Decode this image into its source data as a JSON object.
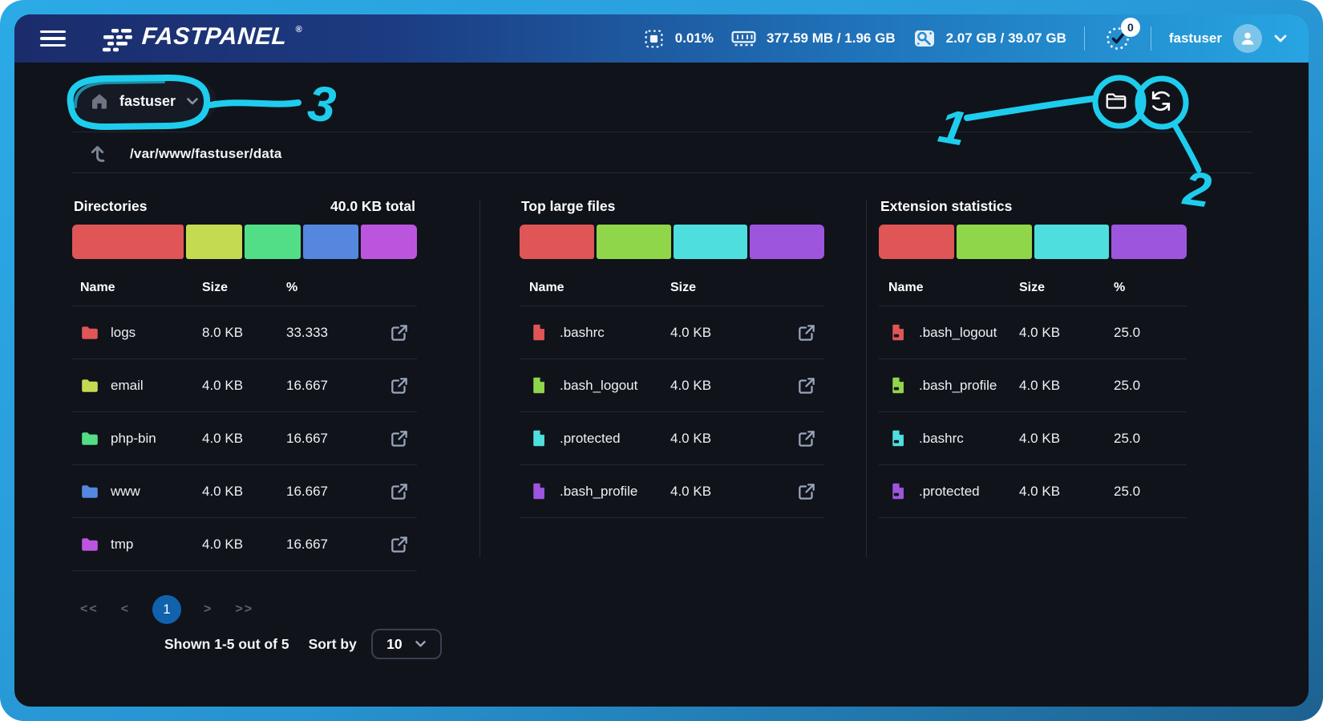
{
  "header": {
    "logo": "FASTPANEL",
    "logo_reg": "®",
    "cpu_usage": "0.01%",
    "memory_usage": "377.59 MB / 1.96 GB",
    "disk_usage": "2.07 GB / 39.07 GB",
    "notification_count": "0",
    "username": "fastuser"
  },
  "toolbar": {
    "user_selector": "fastuser",
    "path": "/var/www/fastuser/data"
  },
  "panels": {
    "directories": {
      "title": "Directories",
      "total": "40.0 KB total",
      "columns": [
        "Name",
        "Size",
        "%"
      ],
      "bar": [
        {
          "color": "#e05555",
          "pct": 33.333
        },
        {
          "color": "#c4da50",
          "pct": 16.667
        },
        {
          "color": "#52dd87",
          "pct": 16.667
        },
        {
          "color": "#5587de",
          "pct": 16.667
        },
        {
          "color": "#bc55de",
          "pct": 16.667
        }
      ],
      "rows": [
        {
          "name": "logs",
          "size": "8.0 KB",
          "pct": "33.333",
          "color": "#e05555"
        },
        {
          "name": "email",
          "size": "4.0 KB",
          "pct": "16.667",
          "color": "#c4da50"
        },
        {
          "name": "php-bin",
          "size": "4.0 KB",
          "pct": "16.667",
          "color": "#52dd87"
        },
        {
          "name": "www",
          "size": "4.0 KB",
          "pct": "16.667",
          "color": "#5587de"
        },
        {
          "name": "tmp",
          "size": "4.0 KB",
          "pct": "16.667",
          "color": "#bc55de"
        }
      ]
    },
    "top_files": {
      "title": "Top large files",
      "columns": [
        "Name",
        "Size"
      ],
      "bar": [
        {
          "color": "#e05555",
          "pct": 25
        },
        {
          "color": "#90d64b",
          "pct": 25
        },
        {
          "color": "#4fdede",
          "pct": 25
        },
        {
          "color": "#9d55de",
          "pct": 25
        }
      ],
      "rows": [
        {
          "name": ".bashrc",
          "size": "4.0 KB",
          "color": "#e05555"
        },
        {
          "name": ".bash_logout",
          "size": "4.0 KB",
          "color": "#90d64b"
        },
        {
          "name": ".protected",
          "size": "4.0 KB",
          "color": "#4fdede"
        },
        {
          "name": ".bash_profile",
          "size": "4.0 KB",
          "color": "#9d55de"
        }
      ]
    },
    "extensions": {
      "title": "Extension statistics",
      "columns": [
        "Name",
        "Size",
        "%"
      ],
      "bar": [
        {
          "color": "#e05555",
          "pct": 25
        },
        {
          "color": "#90d64b",
          "pct": 25
        },
        {
          "color": "#4fdede",
          "pct": 25
        },
        {
          "color": "#9d55de",
          "pct": 25
        }
      ],
      "rows": [
        {
          "name": ".bash_logout",
          "size": "4.0 KB",
          "pct": "25.0",
          "color": "#e05555"
        },
        {
          "name": ".bash_profile",
          "size": "4.0 KB",
          "pct": "25.0",
          "color": "#90d64b"
        },
        {
          "name": ".bashrc",
          "size": "4.0 KB",
          "pct": "25.0",
          "color": "#4fdede"
        },
        {
          "name": ".protected",
          "size": "4.0 KB",
          "pct": "25.0",
          "color": "#9d55de"
        }
      ]
    }
  },
  "pagination": {
    "first": "<<",
    "prev": "<",
    "current": "1",
    "next": ">",
    "last": ">>",
    "summary": "Shown 1-5 out of 5",
    "sort_label": "Sort by",
    "page_size": "10"
  },
  "annotations": {
    "color": "#1ecdee",
    "labels": {
      "one": "1",
      "two": "2",
      "three": "3"
    }
  }
}
